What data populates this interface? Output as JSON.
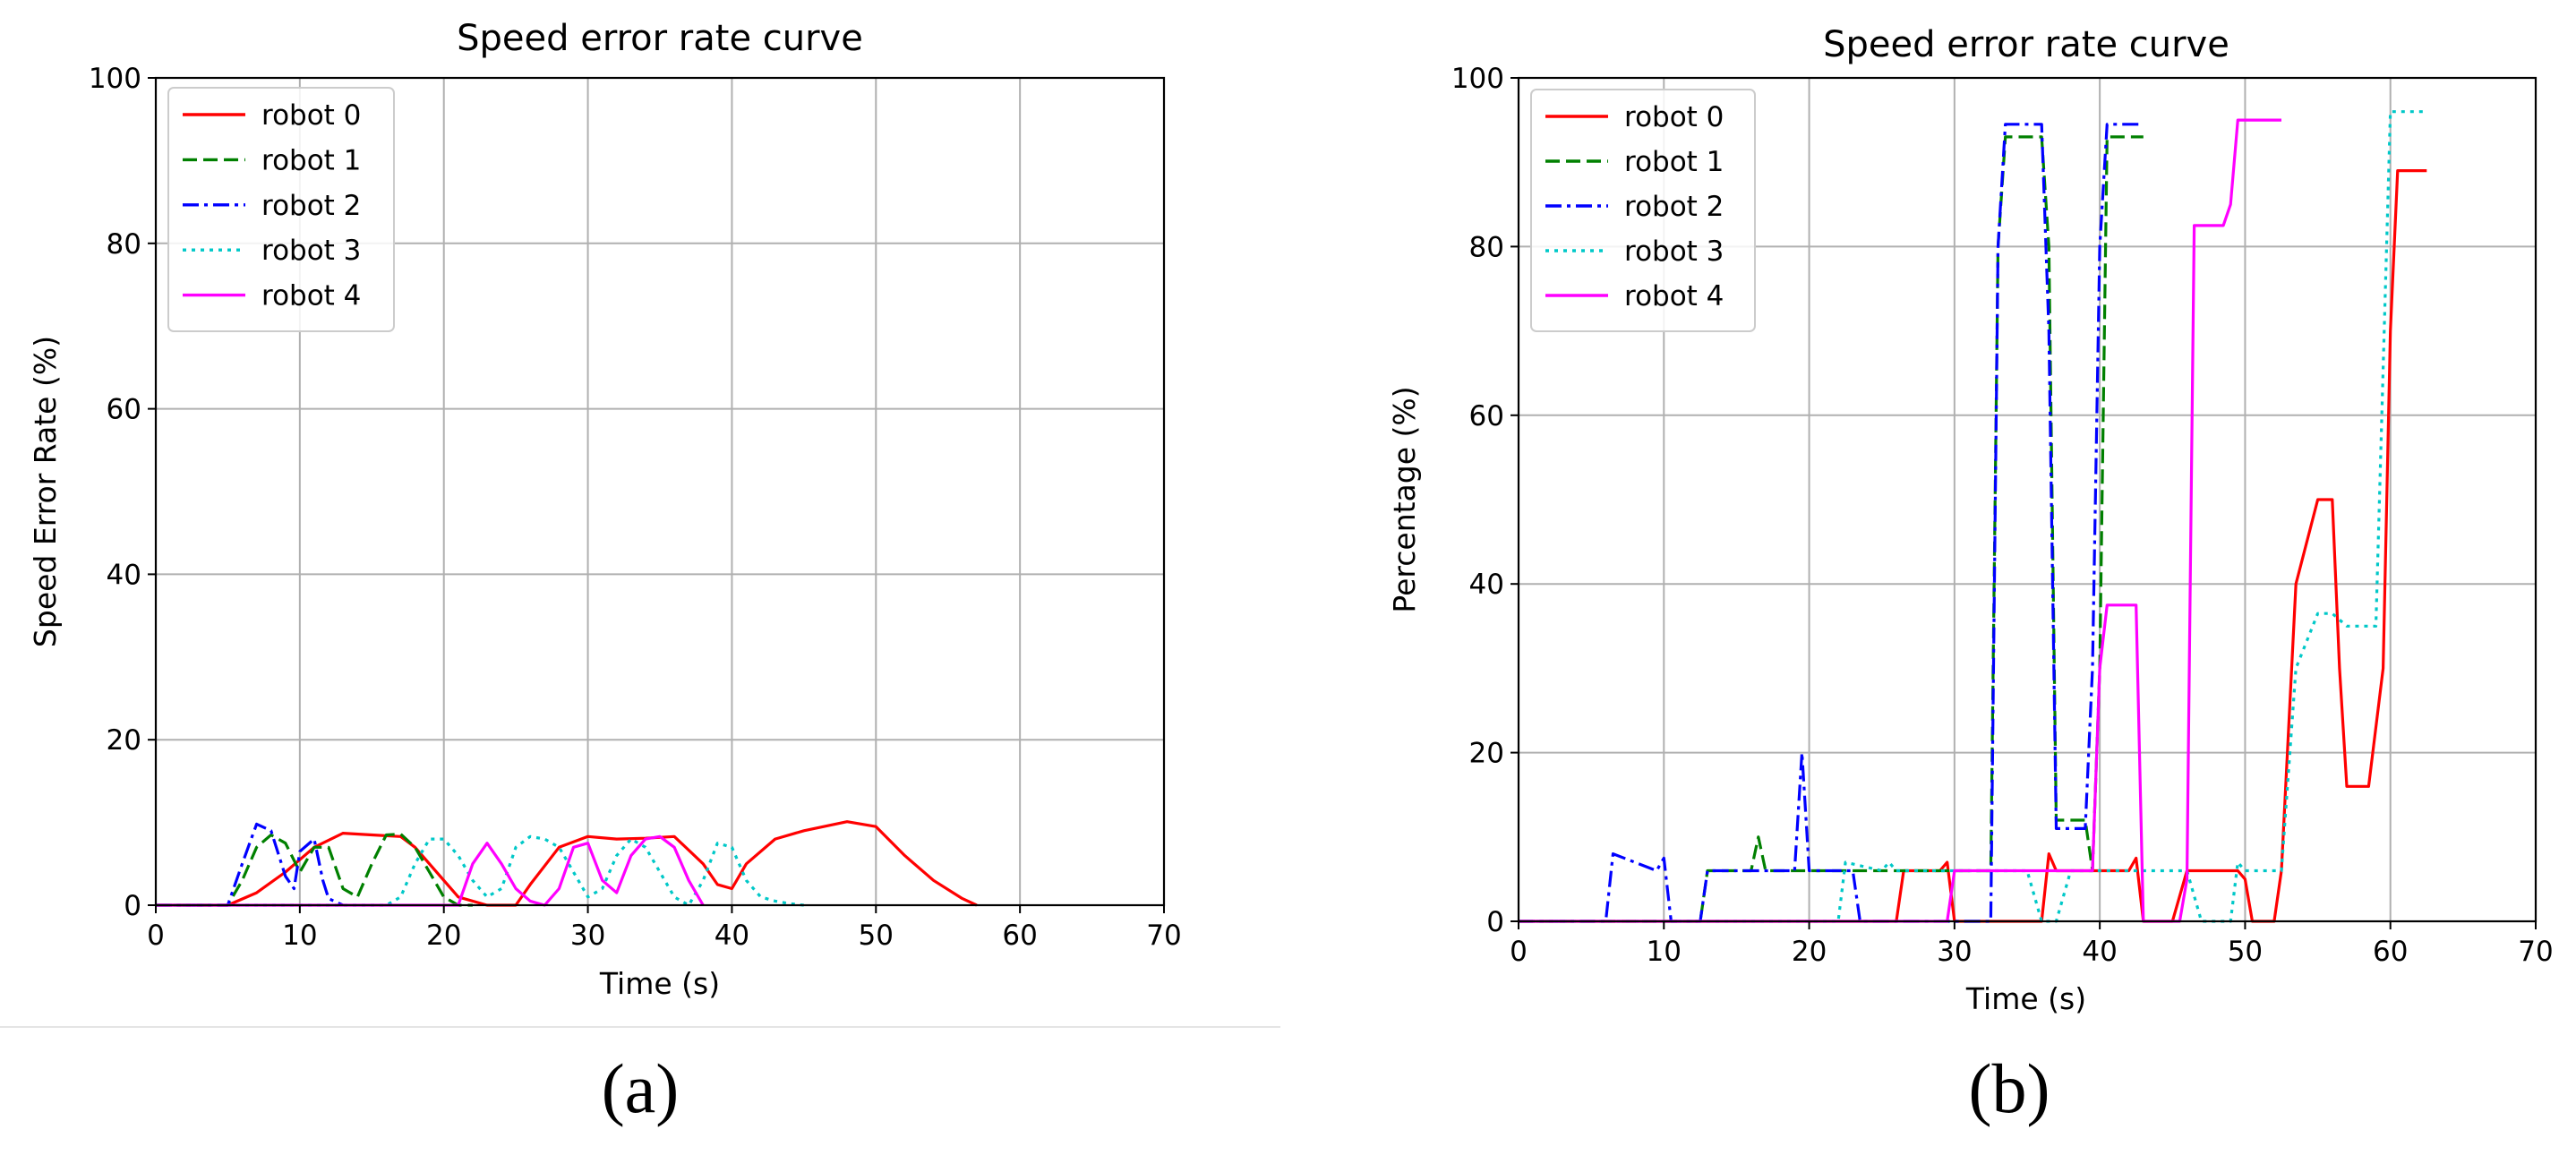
{
  "figure": {
    "captions": [
      "(a)",
      "(b)"
    ]
  },
  "chart_data": [
    {
      "type": "line",
      "panel": "a",
      "title": "Speed error rate curve",
      "xlabel": "Time (s)",
      "ylabel": "Speed Error Rate (%)",
      "xlim": [
        0,
        70
      ],
      "ylim": [
        0,
        100
      ],
      "xticks": [
        "0",
        "10",
        "20",
        "30",
        "40",
        "50",
        "60",
        "70"
      ],
      "yticks": [
        "0",
        "20",
        "40",
        "60",
        "80",
        "100"
      ],
      "grid": true,
      "legend": "top-left",
      "series": [
        {
          "name": "robot 0",
          "color": "#ff0000",
          "style": "solid",
          "x": [
            0,
            5,
            7,
            9,
            11,
            13,
            15,
            17,
            18,
            20,
            21,
            23,
            25,
            26,
            28,
            30,
            32,
            34,
            36,
            38,
            39,
            40,
            41,
            43,
            45,
            48,
            50,
            52,
            54,
            56,
            57
          ],
          "y": [
            0,
            0,
            1.5,
            4,
            7,
            8.7,
            8.5,
            8.3,
            7,
            3,
            1,
            0,
            0,
            2.5,
            7,
            8.3,
            8.0,
            8.1,
            8.3,
            5,
            2.5,
            2,
            5,
            8,
            9,
            10.1,
            9.5,
            6,
            3,
            0.8,
            0
          ]
        },
        {
          "name": "robot 1",
          "color": "#008000",
          "style": "dashed",
          "x": [
            0,
            5,
            6,
            7,
            8,
            9,
            10,
            11,
            12,
            13,
            14,
            15,
            16,
            17,
            18,
            19,
            20,
            21,
            22
          ],
          "y": [
            0,
            0,
            3,
            7,
            8.5,
            7.5,
            4,
            7,
            7,
            2,
            1,
            5,
            8.5,
            8.6,
            7,
            4,
            1,
            0,
            0
          ]
        },
        {
          "name": "robot 2",
          "color": "#0000ff",
          "style": "dashdot",
          "x": [
            0,
            5,
            6,
            7,
            8,
            9,
            9.6,
            10,
            11,
            11.6,
            12,
            13
          ],
          "y": [
            0,
            0,
            5,
            9.8,
            9,
            3.5,
            2,
            6.5,
            8,
            3,
            0.8,
            0
          ]
        },
        {
          "name": "robot 3",
          "color": "#00c8c8",
          "style": "dotted",
          "x": [
            0,
            16,
            17,
            18,
            19,
            20,
            21,
            22,
            23,
            24,
            25,
            26,
            27,
            28,
            29,
            30,
            31,
            32,
            33,
            34,
            35,
            36,
            37,
            38,
            39,
            40,
            41,
            42,
            43,
            44,
            45
          ],
          "y": [
            0,
            0,
            1,
            5,
            8,
            8,
            6,
            3,
            1,
            2,
            7,
            8.3,
            8,
            7,
            4,
            1,
            2,
            6,
            8,
            7,
            4,
            1,
            0,
            3,
            7.5,
            7,
            3,
            1,
            0.5,
            0.2,
            0
          ]
        },
        {
          "name": "robot 4",
          "color": "#ff00ff",
          "style": "solid",
          "x": [
            0,
            21,
            22,
            23,
            24,
            25,
            26,
            27,
            28,
            29,
            30,
            31,
            32,
            33,
            34,
            35,
            36,
            37,
            38
          ],
          "y": [
            0,
            0,
            5,
            7.5,
            5,
            2,
            0.5,
            0,
            2,
            7,
            7.5,
            3,
            1.5,
            6,
            8,
            8.3,
            7,
            3,
            0
          ]
        }
      ]
    },
    {
      "type": "line",
      "panel": "b",
      "title": "Speed error rate curve",
      "xlabel": "Time (s)",
      "ylabel": "Percentage (%)",
      "xlim": [
        0,
        70
      ],
      "ylim": [
        0,
        100
      ],
      "xticks": [
        "0",
        "10",
        "20",
        "30",
        "40",
        "50",
        "60",
        "70"
      ],
      "yticks": [
        "0",
        "20",
        "40",
        "60",
        "80",
        "100"
      ],
      "grid": true,
      "legend": "top-left",
      "series": [
        {
          "name": "robot 0",
          "color": "#ff0000",
          "style": "solid",
          "x": [
            0,
            26,
            26.5,
            29,
            29.5,
            30,
            36,
            36.5,
            37,
            42,
            42.5,
            43,
            45,
            46,
            47,
            49.5,
            50,
            50.5,
            52,
            52.5,
            53.5,
            55,
            56,
            56.5,
            57,
            58,
            58.5,
            59.5,
            60,
            60.5,
            62.5
          ],
          "y": [
            0,
            0,
            6,
            6,
            7,
            0,
            0,
            8,
            6,
            6,
            7.5,
            0,
            0,
            6,
            6,
            6,
            5,
            0,
            0,
            6,
            40,
            50,
            50,
            30,
            16,
            16,
            16,
            30,
            70,
            89,
            89
          ]
        },
        {
          "name": "robot 1",
          "color": "#008000",
          "style": "dashed",
          "x": [
            0,
            12.5,
            13,
            16,
            16.5,
            17,
            19,
            20,
            20.5,
            26,
            27,
            28,
            29,
            30,
            31,
            32.5,
            33,
            33.5,
            34,
            36,
            36.5,
            37,
            39,
            39.5,
            40,
            40.5,
            41,
            43
          ],
          "y": [
            0,
            0,
            6,
            6,
            10,
            6,
            6,
            6,
            6,
            6,
            6,
            6,
            6,
            6,
            6,
            6,
            80,
            93,
            93,
            93,
            80,
            12,
            12,
            6,
            30,
            93,
            93,
            93
          ]
        },
        {
          "name": "robot 2",
          "color": "#0000ff",
          "style": "dashdot",
          "x": [
            0,
            6,
            6.5,
            9.5,
            10,
            10.5,
            12.5,
            13,
            19,
            19.5,
            20,
            23,
            23.5,
            32.5,
            33,
            33.5,
            36,
            36.5,
            37,
            39,
            39.5,
            40,
            40.5,
            43
          ],
          "y": [
            0,
            0,
            8,
            6,
            7.5,
            0,
            0,
            6,
            6,
            20,
            6,
            6,
            0,
            0,
            80,
            94.5,
            94.5,
            70,
            11,
            11,
            30,
            80,
            94.5,
            94.5
          ]
        },
        {
          "name": "robot 3",
          "color": "#00c8c8",
          "style": "dotted",
          "x": [
            0,
            22,
            22.5,
            25,
            25.5,
            26,
            27,
            28,
            30,
            31,
            32,
            33,
            35,
            36,
            37,
            38,
            39,
            40,
            42,
            44,
            46,
            47,
            48,
            49,
            49.5,
            50,
            52,
            52.5,
            53.5,
            55,
            56,
            57,
            58,
            59,
            60,
            62.5
          ],
          "y": [
            0,
            0,
            7,
            6,
            7,
            6,
            6,
            6,
            6,
            6,
            6,
            6,
            6,
            0,
            0,
            6,
            6,
            6,
            6,
            6,
            6,
            0,
            0,
            0,
            7,
            6,
            6,
            6,
            30,
            36.5,
            36.5,
            35,
            35,
            35,
            96,
            96
          ]
        },
        {
          "name": "robot 4",
          "color": "#ff00ff",
          "style": "solid",
          "x": [
            0,
            29.5,
            30,
            33,
            33.5,
            39.5,
            40,
            40.5,
            42.5,
            43,
            45.5,
            46,
            46.5,
            48.5,
            49,
            49.5,
            50,
            52.5
          ],
          "y": [
            0,
            0,
            6,
            6,
            6,
            6,
            30,
            37.5,
            37.5,
            0,
            0,
            5,
            82.5,
            82.5,
            85,
            95,
            95,
            95
          ]
        }
      ]
    }
  ]
}
